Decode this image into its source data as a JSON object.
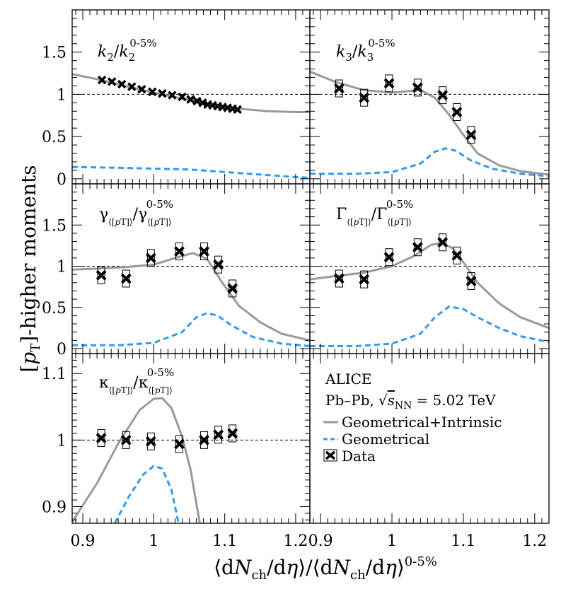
{
  "chart_data": {
    "type": "scatter",
    "experiment": "ALICE",
    "system": "Pb–Pb, √s_NN = 5.02 TeV",
    "legend": {
      "title": "ALICE",
      "system_prefix": "Pb–Pb,",
      "system_suffix": "= 5.02 TeV",
      "entries": [
        {
          "label": "Geometrical+Intrinsic",
          "style": "solid-gray"
        },
        {
          "label": "Geometrical",
          "style": "dashed-blue"
        },
        {
          "label": "Data",
          "style": "marker-x"
        }
      ]
    },
    "colors": {
      "model": "#999999",
      "geometrical": "#3399ee",
      "data": "#000000",
      "reference": "#000000"
    },
    "xlabel": "⟨dN_ch/dη⟩/⟨dN_ch/dη⟩^0-5%",
    "ylabel": "[p_T]-higher moments",
    "xlim": [
      0.885,
      1.22
    ],
    "xticks": [
      "0.9",
      "1",
      "1.1",
      "1.2"
    ],
    "panels": [
      {
        "id": "k2",
        "title": "k2/k2^0-5%",
        "ylim": [
          -0.06,
          2.0
        ],
        "yticks": [
          "0",
          "0.5",
          "1",
          "1.5"
        ],
        "data": {
          "x": [
            0.927,
            0.941,
            0.955,
            0.969,
            0.983,
            0.998,
            1.012,
            1.026,
            1.04,
            1.052,
            1.061,
            1.069,
            1.076,
            1.083,
            1.09,
            1.097,
            1.104,
            1.111,
            1.118
          ],
          "y": [
            1.17,
            1.15,
            1.12,
            1.09,
            1.06,
            1.03,
            1.01,
            0.99,
            0.97,
            0.94,
            0.92,
            0.9,
            0.88,
            0.87,
            0.86,
            0.85,
            0.84,
            0.83,
            0.82
          ]
        },
        "model_geo_intrinsic": {
          "x": [
            0.885,
            0.92,
            0.96,
            1.0,
            1.04,
            1.08,
            1.12,
            1.16,
            1.2,
            1.22
          ],
          "y": [
            1.24,
            1.18,
            1.1,
            1.02,
            0.95,
            0.88,
            0.83,
            0.8,
            0.79,
            0.79
          ]
        },
        "model_geo": {
          "x": [
            0.885,
            0.95,
            1.0,
            1.05,
            1.1,
            1.15,
            1.2,
            1.22
          ],
          "y": [
            0.14,
            0.13,
            0.12,
            0.11,
            0.08,
            0.05,
            0.02,
            0.01
          ]
        }
      },
      {
        "id": "k3",
        "title": "k3/k3^0-5%",
        "ylim": [
          -0.06,
          2.0
        ],
        "yticks": [
          "0",
          "0.5",
          "1",
          "1.5"
        ],
        "data": {
          "x": [
            0.926,
            0.961,
            0.996,
            1.036,
            1.071,
            1.091,
            1.111
          ],
          "y": [
            1.07,
            0.96,
            1.13,
            1.08,
            0.99,
            0.79,
            0.52
          ]
        },
        "model_geo_intrinsic": {
          "x": [
            0.885,
            0.92,
            0.96,
            1.0,
            1.04,
            1.06,
            1.08,
            1.1,
            1.12,
            1.15,
            1.18,
            1.22
          ],
          "y": [
            1.27,
            1.15,
            1.05,
            1.02,
            1.05,
            0.96,
            0.76,
            0.52,
            0.3,
            0.16,
            0.09,
            0.05
          ]
        },
        "model_geo": {
          "x": [
            0.885,
            0.95,
            1.0,
            1.04,
            1.06,
            1.075,
            1.09,
            1.11,
            1.14,
            1.18,
            1.22
          ],
          "y": [
            0.06,
            0.06,
            0.08,
            0.18,
            0.32,
            0.36,
            0.33,
            0.22,
            0.12,
            0.06,
            0.03
          ]
        }
      },
      {
        "id": "gamma",
        "title": "γ_⟨[pT]⟩/γ^0-5%_⟨[pT]⟩",
        "ylim": [
          -0.06,
          2.0
        ],
        "yticks": [
          "0",
          "0.5",
          "1",
          "1.5"
        ],
        "data": {
          "x": [
            0.926,
            0.961,
            0.996,
            1.036,
            1.071,
            1.091,
            1.111
          ],
          "y": [
            0.89,
            0.85,
            1.1,
            1.18,
            1.18,
            1.02,
            0.73
          ]
        },
        "model_geo_intrinsic": {
          "x": [
            0.885,
            0.92,
            0.96,
            1.0,
            1.03,
            1.055,
            1.075,
            1.095,
            1.12,
            1.15,
            1.18,
            1.22
          ],
          "y": [
            0.96,
            0.97,
            0.99,
            1.02,
            1.1,
            1.16,
            1.09,
            0.82,
            0.52,
            0.32,
            0.18,
            0.1
          ]
        },
        "model_geo": {
          "x": [
            0.885,
            0.95,
            1.0,
            1.04,
            1.06,
            1.075,
            1.09,
            1.11,
            1.14,
            1.18,
            1.22
          ],
          "y": [
            0.04,
            0.04,
            0.07,
            0.2,
            0.38,
            0.43,
            0.4,
            0.28,
            0.14,
            0.06,
            0.03
          ]
        }
      },
      {
        "id": "Gamma",
        "title": "Γ_⟨[pT]⟩/Γ^0-5%_⟨[pT]⟩",
        "ylim": [
          -0.06,
          2.0
        ],
        "yticks": [
          "0",
          "0.5",
          "1",
          "1.5"
        ],
        "data": {
          "x": [
            0.926,
            0.961,
            0.996,
            1.036,
            1.071,
            1.091,
            1.111
          ],
          "y": [
            0.85,
            0.84,
            1.11,
            1.23,
            1.29,
            1.13,
            0.82
          ]
        },
        "model_geo_intrinsic": {
          "x": [
            0.885,
            0.92,
            0.96,
            1.0,
            1.03,
            1.055,
            1.07,
            1.085,
            1.1,
            1.12,
            1.15,
            1.18,
            1.22
          ],
          "y": [
            0.84,
            0.88,
            0.92,
            1.0,
            1.12,
            1.26,
            1.28,
            1.22,
            1.05,
            0.8,
            0.55,
            0.38,
            0.25
          ]
        },
        "model_geo": {
          "x": [
            0.885,
            0.95,
            1.0,
            1.04,
            1.06,
            1.08,
            1.1,
            1.12,
            1.15,
            1.18,
            1.22
          ],
          "y": [
            0.03,
            0.03,
            0.06,
            0.18,
            0.38,
            0.51,
            0.48,
            0.38,
            0.25,
            0.15,
            0.08
          ]
        }
      },
      {
        "id": "kappa",
        "title": "κ_⟨[pT]⟩/κ^0-5%_⟨[pT]⟩",
        "ylim": [
          0.875,
          1.13
        ],
        "yticks": [
          "0.9",
          "1",
          "1.1"
        ],
        "data": {
          "x": [
            0.926,
            0.961,
            0.996,
            1.036,
            1.071,
            1.091,
            1.111
          ],
          "y": [
            1.003,
            1.0,
            0.998,
            0.994,
            1.0,
            1.008,
            1.01
          ]
        },
        "model_geo_intrinsic": {
          "x": [
            0.885,
            0.92,
            0.95,
            0.98,
            1.0,
            1.012,
            1.025,
            1.04,
            1.052,
            1.06,
            1.065
          ],
          "y": [
            0.877,
            0.935,
            0.995,
            1.045,
            1.062,
            1.063,
            1.048,
            1.005,
            0.955,
            0.905,
            0.875
          ]
        },
        "model_geo": {
          "x": [
            0.945,
            0.965,
            0.985,
            1.0,
            1.012,
            1.025,
            1.035
          ],
          "y": [
            0.875,
            0.915,
            0.948,
            0.961,
            0.957,
            0.925,
            0.875
          ]
        }
      }
    ]
  }
}
